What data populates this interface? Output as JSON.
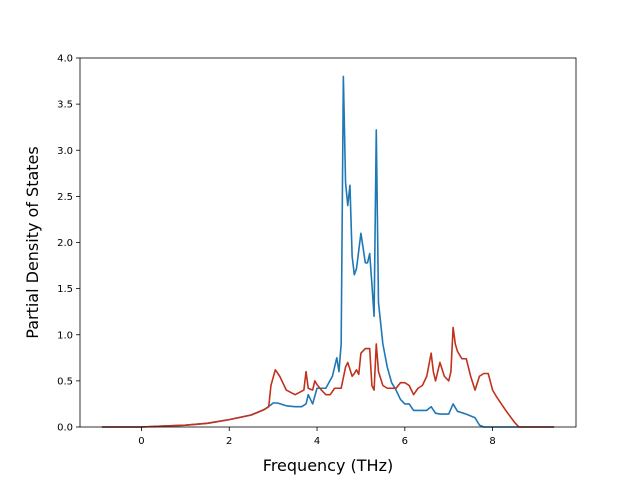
{
  "chart_data": {
    "type": "line",
    "title": "",
    "xlabel": "Frequency (THz)",
    "ylabel": "Partial Density of States",
    "xlim": [
      -1.4,
      9.9
    ],
    "ylim": [
      0,
      4.0
    ],
    "xticks": [
      0,
      2,
      4,
      6,
      8
    ],
    "yticks": [
      0.0,
      0.5,
      1.0,
      1.5,
      2.0,
      2.5,
      3.0,
      3.5,
      4.0
    ],
    "grid": false,
    "legend": "none",
    "series": [
      {
        "color": "#1f77b4",
        "x": [
          -0.9,
          0.0,
          0.5,
          1.0,
          1.5,
          2.0,
          2.5,
          2.8,
          2.95,
          3.0,
          3.1,
          3.3,
          3.5,
          3.65,
          3.75,
          3.8,
          3.9,
          4.0,
          4.2,
          4.35,
          4.45,
          4.5,
          4.55,
          4.6,
          4.65,
          4.7,
          4.75,
          4.8,
          4.85,
          4.9,
          5.0,
          5.1,
          5.15,
          5.2,
          5.25,
          5.3,
          5.35,
          5.4,
          5.5,
          5.6,
          5.7,
          5.8,
          5.9,
          6.0,
          6.1,
          6.2,
          6.3,
          6.5,
          6.6,
          6.7,
          6.8,
          7.0,
          7.1,
          7.2,
          7.4,
          7.6,
          7.7,
          7.8,
          8.0,
          9.4
        ],
        "y": [
          0.0,
          0.0,
          0.01,
          0.02,
          0.04,
          0.08,
          0.13,
          0.19,
          0.24,
          0.26,
          0.26,
          0.23,
          0.22,
          0.22,
          0.25,
          0.35,
          0.25,
          0.42,
          0.42,
          0.55,
          0.75,
          0.6,
          0.9,
          3.8,
          2.65,
          2.4,
          2.62,
          1.85,
          1.65,
          1.72,
          2.1,
          1.78,
          1.78,
          1.88,
          1.55,
          1.2,
          3.22,
          1.35,
          0.9,
          0.65,
          0.48,
          0.4,
          0.3,
          0.25,
          0.25,
          0.18,
          0.18,
          0.18,
          0.22,
          0.15,
          0.14,
          0.14,
          0.25,
          0.17,
          0.14,
          0.1,
          0.02,
          0.0,
          0.0,
          0.0
        ]
      },
      {
        "color": "#c0321e",
        "x": [
          -0.9,
          0.0,
          0.5,
          1.0,
          1.5,
          2.0,
          2.5,
          2.8,
          2.9,
          2.95,
          3.05,
          3.15,
          3.3,
          3.5,
          3.7,
          3.75,
          3.8,
          3.9,
          3.95,
          4.0,
          4.1,
          4.2,
          4.3,
          4.4,
          4.55,
          4.65,
          4.7,
          4.8,
          4.85,
          4.9,
          4.95,
          5.0,
          5.1,
          5.2,
          5.25,
          5.3,
          5.35,
          5.4,
          5.5,
          5.6,
          5.8,
          5.9,
          6.0,
          6.1,
          6.2,
          6.3,
          6.4,
          6.5,
          6.6,
          6.65,
          6.7,
          6.75,
          6.8,
          6.9,
          7.0,
          7.05,
          7.1,
          7.15,
          7.2,
          7.3,
          7.4,
          7.5,
          7.6,
          7.7,
          7.8,
          7.9,
          8.0,
          8.1,
          8.3,
          8.5,
          8.6,
          9.4
        ],
        "y": [
          0.0,
          0.0,
          0.01,
          0.02,
          0.04,
          0.08,
          0.13,
          0.19,
          0.22,
          0.45,
          0.62,
          0.55,
          0.4,
          0.35,
          0.4,
          0.6,
          0.42,
          0.4,
          0.5,
          0.46,
          0.4,
          0.35,
          0.35,
          0.42,
          0.42,
          0.65,
          0.7,
          0.55,
          0.58,
          0.62,
          0.57,
          0.8,
          0.85,
          0.85,
          0.45,
          0.4,
          0.9,
          0.6,
          0.45,
          0.42,
          0.42,
          0.48,
          0.48,
          0.45,
          0.35,
          0.42,
          0.45,
          0.55,
          0.8,
          0.6,
          0.5,
          0.6,
          0.7,
          0.55,
          0.5,
          0.6,
          1.08,
          0.9,
          0.82,
          0.74,
          0.74,
          0.55,
          0.4,
          0.55,
          0.58,
          0.58,
          0.4,
          0.32,
          0.18,
          0.05,
          0.0,
          0.0
        ]
      }
    ]
  }
}
